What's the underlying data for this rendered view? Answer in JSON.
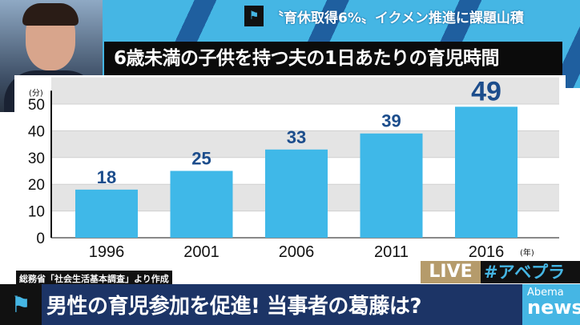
{
  "topic": {
    "text": "〝育休取得6%〟イクメン推進に課題山積",
    "icon": "flag-icon"
  },
  "title": "6歳未満の子供を持つ夫の1日あたりの育児時間",
  "source": "総務省「社会生活基本調査」より作成",
  "live_label": "LIVE",
  "hashtag": "#アベプラ",
  "headline": "男性の育児参加を促進! 当事者の葛藤は?",
  "logo": {
    "top": "Abema",
    "bottom": "news/"
  },
  "colors": {
    "bar": "#3fb8e8",
    "value_label": "#1c4d8c",
    "band": "#e4e4e4",
    "navy": "#1c3466"
  },
  "chart_data": {
    "type": "bar",
    "title": "6歳未満の子供を持つ夫の1日あたりの育児時間",
    "categories": [
      "1996",
      "2001",
      "2006",
      "2011",
      "2016"
    ],
    "values": [
      18,
      25,
      33,
      39,
      49
    ],
    "y_unit_label": "(分)",
    "x_unit_label": "(年)",
    "yticks": [
      0,
      10,
      20,
      30,
      40,
      50
    ],
    "ylim": [
      0,
      55
    ],
    "grid": true
  }
}
